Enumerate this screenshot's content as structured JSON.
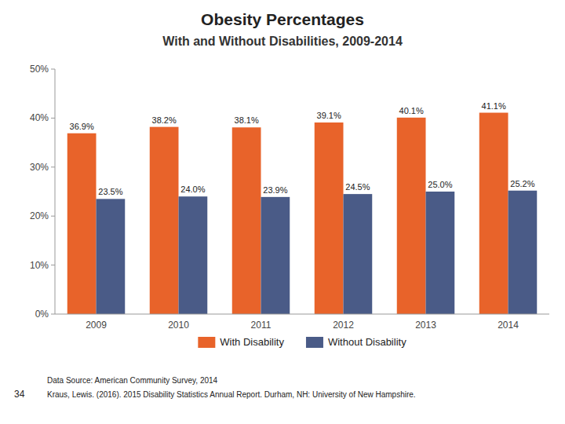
{
  "chart_data": {
    "type": "bar",
    "title": "Obesity Percentages",
    "subtitle": "With and Without Disabilities, 2009-2014",
    "categories": [
      "2009",
      "2010",
      "2011",
      "2012",
      "2013",
      "2014"
    ],
    "series": [
      {
        "name": "With Disability",
        "color": "#E8632A",
        "values": [
          36.9,
          38.2,
          38.1,
          39.1,
          40.1,
          41.1
        ],
        "value_labels": [
          "36.9%",
          "38.2%",
          "38.1%",
          "39.1%",
          "40.1%",
          "41.1%"
        ]
      },
      {
        "name": "Without Disability",
        "color": "#4A5B87",
        "values": [
          23.5,
          24.0,
          23.9,
          24.5,
          25.0,
          25.2
        ],
        "value_labels": [
          "23.5%",
          "24.0%",
          "23.9%",
          "24.5%",
          "25.0%",
          "25.2%"
        ]
      }
    ],
    "ylim": [
      0,
      50
    ],
    "yticks": [
      {
        "value": 0,
        "label": "0%"
      },
      {
        "value": 10,
        "label": "10%"
      },
      {
        "value": 20,
        "label": "20%"
      },
      {
        "value": 30,
        "label": "30%"
      },
      {
        "value": 40,
        "label": "40%"
      },
      {
        "value": 50,
        "label": "50%"
      }
    ],
    "grid": false,
    "legend": "bottom",
    "data_labels": true,
    "annotations": [
      "Data Source: American Community Survey, 2014",
      "Kraus, Lewis. (2016). 2015 Disability Statistics Annual Report. Durham, NH: University of New Hampshire.",
      "34"
    ]
  }
}
